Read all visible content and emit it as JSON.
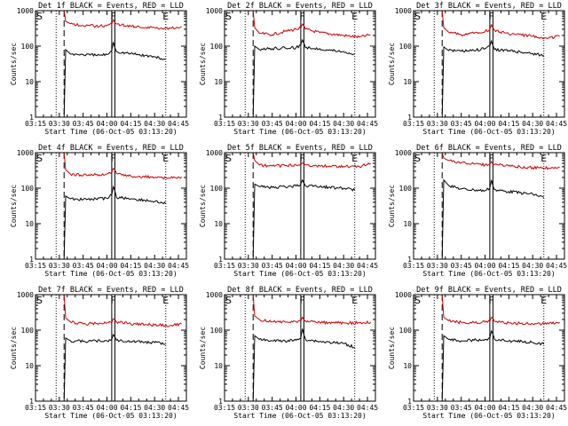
{
  "chart_data": [
    {
      "type": "line",
      "title": "Det 1f BLACK = Events, RED = LLD",
      "xlabel": "Start Time (06-Oct-05 03:13:20)",
      "ylabel": "Counts/sec",
      "yscale": "log",
      "ylim": [
        1,
        1000
      ],
      "xlim": [
        "03:15",
        "04:50"
      ],
      "xticks": [
        "03:15",
        "03:30",
        "03:45",
        "04:00",
        "04:15",
        "04:30",
        "04:45"
      ],
      "yticks": [
        "1",
        "10",
        "100",
        "1000"
      ],
      "markers": [
        {
          "label": "S",
          "time": "03:15"
        },
        {
          "label": "F",
          "time": "04:04"
        },
        {
          "label": "E",
          "time": "04:37"
        }
      ],
      "vlines": {
        "dotted": [
          "03:28",
          "04:37"
        ],
        "dashed": [
          "03:33"
        ],
        "solid": [
          "04:03",
          "04:05"
        ]
      },
      "series": [
        {
          "color": "#cc0000",
          "x": [
            "03:33",
            "03:34",
            "03:37",
            "03:45",
            "03:53",
            "04:00",
            "04:03",
            "04:04",
            "04:06",
            "04:15",
            "04:30",
            "04:40",
            "04:47"
          ],
          "values": [
            1000,
            500,
            430,
            380,
            370,
            380,
            420,
            560,
            420,
            360,
            330,
            320,
            360
          ]
        },
        {
          "color": "#000000",
          "x": [
            "03:33",
            "03:34",
            "03:37",
            "03:45",
            "03:53",
            "04:00",
            "04:03",
            "04:04",
            "04:06",
            "04:15",
            "04:30",
            "04:37"
          ],
          "values": [
            1,
            80,
            60,
            58,
            55,
            58,
            75,
            130,
            70,
            62,
            50,
            42
          ]
        }
      ]
    },
    {
      "type": "line",
      "title": "Det 2f BLACK = Events, RED = LLD",
      "xlabel": "Start Time (06-Oct-05 03:13:20)",
      "ylabel": "Counts/sec",
      "yscale": "log",
      "ylim": [
        1,
        1000
      ],
      "xlim": [
        "03:15",
        "04:50"
      ],
      "xticks": [
        "03:15",
        "03:30",
        "03:45",
        "04:00",
        "04:15",
        "04:30",
        "04:45"
      ],
      "yticks": [
        "1",
        "10",
        "100",
        "1000"
      ],
      "markers": [
        {
          "label": "S",
          "time": "03:15"
        },
        {
          "label": "F",
          "time": "04:04"
        },
        {
          "label": "E",
          "time": "04:37"
        }
      ],
      "vlines": {
        "dotted": [
          "03:28",
          "04:37"
        ],
        "dashed": [
          "03:33"
        ],
        "solid": [
          "04:03",
          "04:05"
        ]
      },
      "series": [
        {
          "color": "#cc0000",
          "x": [
            "03:33",
            "03:34",
            "03:37",
            "03:45",
            "03:53",
            "04:00",
            "04:03",
            "04:04",
            "04:06",
            "04:15",
            "04:30",
            "04:40",
            "04:47"
          ],
          "values": [
            1000,
            330,
            230,
            210,
            260,
            300,
            320,
            420,
            300,
            240,
            200,
            180,
            210
          ]
        },
        {
          "color": "#000000",
          "x": [
            "03:33",
            "03:34",
            "03:37",
            "03:45",
            "03:53",
            "04:00",
            "04:03",
            "04:04",
            "04:06",
            "04:15",
            "04:30",
            "04:37"
          ],
          "values": [
            1,
            100,
            80,
            85,
            90,
            90,
            110,
            150,
            90,
            85,
            70,
            60
          ]
        }
      ]
    },
    {
      "type": "line",
      "title": "Det 3f BLACK = Events, RED = LLD",
      "xlabel": "Start Time (06-Oct-05 03:13:20)",
      "ylabel": "Counts/sec",
      "yscale": "log",
      "ylim": [
        1,
        1000
      ],
      "xlim": [
        "03:15",
        "04:50"
      ],
      "xticks": [
        "03:15",
        "03:30",
        "03:45",
        "04:00",
        "04:15",
        "04:30",
        "04:45"
      ],
      "yticks": [
        "1",
        "10",
        "100",
        "1000"
      ],
      "markers": [
        {
          "label": "S",
          "time": "03:15"
        },
        {
          "label": "F",
          "time": "04:04"
        },
        {
          "label": "E",
          "time": "04:37"
        }
      ],
      "vlines": {
        "dotted": [
          "03:28",
          "04:37"
        ],
        "dashed": [
          "03:33"
        ],
        "solid": [
          "04:03",
          "04:05"
        ]
      },
      "series": [
        {
          "color": "#cc0000",
          "x": [
            "03:33",
            "03:34",
            "03:37",
            "03:45",
            "03:53",
            "04:00",
            "04:03",
            "04:04",
            "04:06",
            "04:15",
            "04:30",
            "04:40",
            "04:47"
          ],
          "values": [
            1000,
            330,
            250,
            210,
            230,
            260,
            300,
            400,
            280,
            220,
            190,
            170,
            190
          ]
        },
        {
          "color": "#000000",
          "x": [
            "03:33",
            "03:34",
            "03:37",
            "03:45",
            "03:53",
            "04:00",
            "04:03",
            "04:04",
            "04:06",
            "04:15",
            "04:30",
            "04:37"
          ],
          "values": [
            1,
            95,
            75,
            72,
            75,
            85,
            100,
            140,
            80,
            75,
            62,
            55
          ]
        }
      ]
    },
    {
      "type": "line",
      "title": "Det 4f BLACK = Events, RED = LLD",
      "xlabel": "Start Time (06-Oct-05 03:13:20)",
      "ylabel": "Counts/sec",
      "yscale": "log",
      "ylim": [
        1,
        1000
      ],
      "xlim": [
        "03:15",
        "04:50"
      ],
      "xticks": [
        "03:15",
        "03:30",
        "03:45",
        "04:00",
        "04:15",
        "04:30",
        "04:45"
      ],
      "yticks": [
        "1",
        "10",
        "100",
        "1000"
      ],
      "markers": [
        {
          "label": "S",
          "time": "03:15"
        },
        {
          "label": "F",
          "time": "04:04"
        },
        {
          "label": "E",
          "time": "04:37"
        }
      ],
      "vlines": {
        "dotted": [
          "03:28",
          "04:37"
        ],
        "dashed": [
          "03:33"
        ],
        "solid": [
          "04:03",
          "04:05"
        ]
      },
      "series": [
        {
          "color": "#cc0000",
          "x": [
            "03:33",
            "03:34",
            "03:37",
            "03:45",
            "03:53",
            "04:00",
            "04:03",
            "04:04",
            "04:06",
            "04:15",
            "04:30",
            "04:40",
            "04:47"
          ],
          "values": [
            1000,
            330,
            250,
            230,
            240,
            250,
            280,
            360,
            260,
            220,
            200,
            190,
            210
          ]
        },
        {
          "color": "#000000",
          "x": [
            "03:33",
            "03:34",
            "03:37",
            "03:45",
            "03:53",
            "04:00",
            "04:03",
            "04:04",
            "04:06",
            "04:15",
            "04:30",
            "04:37"
          ],
          "values": [
            1,
            60,
            50,
            48,
            50,
            52,
            65,
            110,
            55,
            50,
            42,
            36
          ]
        }
      ]
    },
    {
      "type": "line",
      "title": "Det 5f BLACK = Events, RED = LLD",
      "xlabel": "Start Time (06-Oct-05 03:13:20)",
      "ylabel": "Counts/sec",
      "yscale": "log",
      "ylim": [
        1,
        1000
      ],
      "xlim": [
        "03:15",
        "04:50"
      ],
      "xticks": [
        "03:15",
        "03:30",
        "03:45",
        "04:00",
        "04:15",
        "04:30",
        "04:45"
      ],
      "yticks": [
        "1",
        "10",
        "100",
        "1000"
      ],
      "markers": [
        {
          "label": "S",
          "time": "03:15"
        },
        {
          "label": "F",
          "time": "04:04"
        },
        {
          "label": "E",
          "time": "04:37"
        }
      ],
      "vlines": {
        "dotted": [
          "03:28",
          "04:37"
        ],
        "dashed": [
          "03:33"
        ],
        "solid": [
          "04:03",
          "04:05"
        ]
      },
      "series": [
        {
          "color": "#cc0000",
          "x": [
            "03:33",
            "03:34",
            "03:37",
            "03:45",
            "03:53",
            "04:00",
            "04:03",
            "04:04",
            "04:06",
            "04:15",
            "04:30",
            "04:40",
            "04:47"
          ],
          "values": [
            1000,
            600,
            450,
            420,
            430,
            450,
            460,
            520,
            450,
            420,
            410,
            400,
            500
          ]
        },
        {
          "color": "#000000",
          "x": [
            "03:33",
            "03:34",
            "03:37",
            "03:45",
            "03:53",
            "04:00",
            "04:03",
            "04:04",
            "04:06",
            "04:15",
            "04:30",
            "04:37"
          ],
          "values": [
            1,
            130,
            110,
            105,
            110,
            115,
            130,
            170,
            115,
            110,
            100,
            90
          ]
        }
      ]
    },
    {
      "type": "line",
      "title": "Det 6f BLACK = Events, RED = LLD",
      "xlabel": "Start Time (06-Oct-05 03:13:20)",
      "ylabel": "Counts/sec",
      "yscale": "log",
      "ylim": [
        1,
        1000
      ],
      "xlim": [
        "03:15",
        "04:50"
      ],
      "xticks": [
        "03:15",
        "03:30",
        "03:45",
        "04:00",
        "04:15",
        "04:30",
        "04:45"
      ],
      "yticks": [
        "1",
        "10",
        "100",
        "1000"
      ],
      "markers": [
        {
          "label": "S",
          "time": "03:15"
        },
        {
          "label": "F",
          "time": "04:04"
        },
        {
          "label": "E",
          "time": "04:37"
        }
      ],
      "vlines": {
        "dotted": [
          "03:28",
          "04:37"
        ],
        "dashed": [
          "03:33"
        ],
        "solid": [
          "04:03",
          "04:05"
        ]
      },
      "series": [
        {
          "color": "#cc0000",
          "x": [
            "03:33",
            "03:34",
            "03:37",
            "03:45",
            "03:53",
            "04:00",
            "04:03",
            "04:04",
            "04:06",
            "04:15",
            "04:30",
            "04:40",
            "04:47"
          ],
          "values": [
            1000,
            700,
            600,
            520,
            480,
            450,
            470,
            560,
            460,
            420,
            380,
            370,
            390
          ]
        },
        {
          "color": "#000000",
          "x": [
            "03:33",
            "03:34",
            "03:37",
            "03:45",
            "03:53",
            "04:00",
            "04:03",
            "04:04",
            "04:06",
            "04:15",
            "04:30",
            "04:37"
          ],
          "values": [
            1,
            170,
            120,
            95,
            90,
            85,
            100,
            170,
            90,
            80,
            68,
            55
          ]
        }
      ]
    },
    {
      "type": "line",
      "title": "Det 7f BLACK = Events, RED = LLD",
      "xlabel": "Start Time (06-Oct-05 03:13:20)",
      "ylabel": "Counts/sec",
      "yscale": "log",
      "ylim": [
        1,
        1000
      ],
      "xlim": [
        "03:15",
        "04:50"
      ],
      "xticks": [
        "03:15",
        "03:30",
        "03:45",
        "04:00",
        "04:15",
        "04:30",
        "04:45"
      ],
      "yticks": [
        "1",
        "10",
        "100",
        "1000"
      ],
      "markers": [
        {
          "label": "S",
          "time": "03:15"
        },
        {
          "label": "F",
          "time": "04:04"
        },
        {
          "label": "E",
          "time": "04:37"
        }
      ],
      "vlines": {
        "dotted": [
          "03:28",
          "04:37"
        ],
        "dashed": [
          "03:33"
        ],
        "solid": [
          "04:03",
          "04:05"
        ]
      },
      "series": [
        {
          "color": "#cc0000",
          "x": [
            "03:33",
            "03:34",
            "03:37",
            "03:45",
            "03:53",
            "04:00",
            "04:03",
            "04:04",
            "04:06",
            "04:15",
            "04:30",
            "04:40",
            "04:47"
          ],
          "values": [
            1000,
            220,
            170,
            150,
            155,
            160,
            165,
            210,
            170,
            150,
            140,
            135,
            150
          ]
        },
        {
          "color": "#000000",
          "x": [
            "03:33",
            "03:34",
            "03:37",
            "03:45",
            "03:53",
            "04:00",
            "04:03",
            "04:04",
            "04:06",
            "04:15",
            "04:30",
            "04:37"
          ],
          "values": [
            1,
            60,
            50,
            48,
            50,
            50,
            55,
            75,
            52,
            48,
            45,
            40
          ]
        }
      ]
    },
    {
      "type": "line",
      "title": "Det 8f BLACK = Events, RED = LLD",
      "xlabel": "Start Time (06-Oct-05 03:13:20)",
      "ylabel": "Counts/sec",
      "yscale": "log",
      "ylim": [
        1,
        1000
      ],
      "xlim": [
        "03:15",
        "04:50"
      ],
      "xticks": [
        "03:15",
        "03:30",
        "03:45",
        "04:00",
        "04:15",
        "04:30",
        "04:45"
      ],
      "yticks": [
        "1",
        "10",
        "100",
        "1000"
      ],
      "markers": [
        {
          "label": "S",
          "time": "03:15"
        },
        {
          "label": "F",
          "time": "04:04"
        },
        {
          "label": "E",
          "time": "04:37"
        }
      ],
      "vlines": {
        "dotted": [
          "03:28",
          "04:37"
        ],
        "dashed": [
          "03:33"
        ],
        "solid": [
          "04:03",
          "04:05"
        ]
      },
      "series": [
        {
          "color": "#cc0000",
          "x": [
            "03:33",
            "03:34",
            "03:37",
            "03:45",
            "03:53",
            "04:00",
            "04:03",
            "04:04",
            "04:06",
            "04:15",
            "04:30",
            "04:40",
            "04:47"
          ],
          "values": [
            1000,
            250,
            200,
            170,
            170,
            175,
            180,
            230,
            180,
            165,
            160,
            160,
            170
          ]
        },
        {
          "color": "#000000",
          "x": [
            "03:33",
            "03:34",
            "03:37",
            "03:45",
            "03:53",
            "04:00",
            "04:03",
            "04:04",
            "04:06",
            "04:15",
            "04:30",
            "04:37"
          ],
          "values": [
            1,
            70,
            55,
            50,
            50,
            52,
            60,
            110,
            55,
            48,
            42,
            33
          ]
        }
      ]
    },
    {
      "type": "line",
      "title": "Det 9f BLACK = Events, RED = LLD",
      "xlabel": "Start Time (06-Oct-05 03:13:20)",
      "ylabel": "Counts/sec",
      "yscale": "log",
      "ylim": [
        1,
        1000
      ],
      "xlim": [
        "03:15",
        "04:50"
      ],
      "xticks": [
        "03:15",
        "03:30",
        "03:45",
        "04:00",
        "04:15",
        "04:30",
        "04:45"
      ],
      "yticks": [
        "1",
        "10",
        "100",
        "1000"
      ],
      "markers": [
        {
          "label": "S",
          "time": "03:15"
        },
        {
          "label": "F",
          "time": "04:04"
        },
        {
          "label": "E",
          "time": "04:37"
        }
      ],
      "vlines": {
        "dotted": [
          "03:28",
          "04:37"
        ],
        "dashed": [
          "03:33"
        ],
        "solid": [
          "04:03",
          "04:05"
        ]
      },
      "series": [
        {
          "color": "#cc0000",
          "x": [
            "03:33",
            "03:34",
            "03:37",
            "03:45",
            "03:53",
            "04:00",
            "04:03",
            "04:04",
            "04:06",
            "04:15",
            "04:30",
            "04:40",
            "04:47"
          ],
          "values": [
            1000,
            230,
            185,
            165,
            165,
            170,
            175,
            230,
            175,
            160,
            150,
            150,
            165
          ]
        },
        {
          "color": "#000000",
          "x": [
            "03:33",
            "03:34",
            "03:37",
            "03:45",
            "03:53",
            "04:00",
            "04:03",
            "04:04",
            "04:06",
            "04:15",
            "04:30",
            "04:37"
          ],
          "values": [
            1,
            70,
            55,
            50,
            52,
            55,
            60,
            95,
            55,
            50,
            45,
            40
          ]
        }
      ]
    }
  ]
}
